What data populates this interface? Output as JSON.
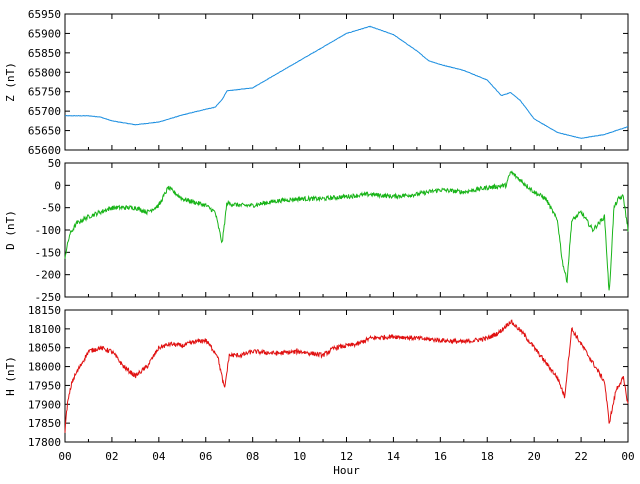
{
  "chart_data": [
    {
      "type": "line",
      "ylabel": "Z (nT)",
      "ylim": [
        65600,
        65950
      ],
      "yticks": [
        65600,
        65650,
        65700,
        65750,
        65800,
        65850,
        65900,
        65950
      ],
      "xlim": [
        0,
        24
      ],
      "color": "#1b8ee0",
      "noise": 0.6,
      "x": [
        0,
        1,
        1.5,
        2,
        3,
        4,
        5,
        6,
        6.4,
        6.7,
        6.9,
        8,
        9,
        10,
        11,
        12,
        13,
        14,
        15,
        15.5,
        16,
        17,
        18,
        18.6,
        19.0,
        19.4,
        20,
        21,
        22,
        23,
        24
      ],
      "values": [
        65688,
        65688,
        65685,
        65675,
        65665,
        65672,
        65690,
        65705,
        65710,
        65730,
        65752,
        65760,
        65795,
        65830,
        65865,
        65900,
        65918,
        65897,
        65855,
        65830,
        65820,
        65805,
        65780,
        65740,
        65748,
        65728,
        65680,
        65645,
        65630,
        65640,
        65660
      ]
    },
    {
      "type": "line",
      "ylabel": "D (nT)",
      "ylim": [
        -250,
        50
      ],
      "yticks": [
        -250,
        -200,
        -150,
        -100,
        -50,
        0,
        50
      ],
      "xlim": [
        0,
        24
      ],
      "color": "#19b419",
      "noise": 5,
      "x": [
        0,
        0.2,
        0.5,
        1,
        2,
        3,
        3.5,
        4,
        4.4,
        5,
        6,
        6.4,
        6.7,
        6.9,
        7.5,
        8,
        9,
        10,
        11,
        12,
        13,
        14,
        15,
        16,
        17,
        18,
        18.8,
        19,
        20,
        20.5,
        21,
        21.2,
        21.4,
        21.6,
        22,
        22.5,
        23,
        23.2,
        23.4,
        23.6,
        23.8,
        24
      ],
      "values": [
        -160,
        -110,
        -85,
        -70,
        -50,
        -50,
        -60,
        -45,
        -5,
        -30,
        -45,
        -60,
        -130,
        -40,
        -45,
        -45,
        -35,
        -30,
        -30,
        -25,
        -20,
        -25,
        -20,
        -10,
        -15,
        -5,
        0,
        30,
        -15,
        -30,
        -80,
        -170,
        -215,
        -80,
        -60,
        -100,
        -70,
        -245,
        -50,
        -30,
        -25,
        -100
      ]
    },
    {
      "type": "line",
      "ylabel": "H (nT)",
      "xlabel": "Hour",
      "ylim": [
        17800,
        18150
      ],
      "yticks": [
        17800,
        17850,
        17900,
        17950,
        18000,
        18050,
        18100,
        18150
      ],
      "xlim": [
        0,
        24
      ],
      "xticks": [
        "00",
        "02",
        "04",
        "06",
        "08",
        "10",
        "12",
        "14",
        "16",
        "18",
        "20",
        "22",
        "00"
      ],
      "color": "#e01010",
      "noise": 6,
      "x": [
        0,
        0.1,
        0.3,
        0.5,
        1,
        1.5,
        2,
        2.5,
        3,
        3.5,
        4,
        4.5,
        5,
        5.5,
        6,
        6.5,
        6.8,
        7,
        7.5,
        8,
        9,
        10,
        11,
        11.5,
        12,
        12.5,
        13,
        14,
        15,
        16,
        17,
        18,
        18.5,
        19,
        19.5,
        20,
        20.5,
        21,
        21.3,
        21.6,
        22,
        22.5,
        23,
        23.2,
        23.5,
        23.8,
        24
      ],
      "values": [
        17830,
        17900,
        17960,
        17985,
        18040,
        18050,
        18040,
        18000,
        17975,
        18000,
        18050,
        18060,
        18055,
        18065,
        18070,
        18030,
        17940,
        18030,
        18030,
        18040,
        18035,
        18040,
        18030,
        18050,
        18055,
        18060,
        18075,
        18080,
        18075,
        18070,
        18065,
        18075,
        18090,
        18120,
        18090,
        18050,
        18010,
        17970,
        17920,
        18100,
        18060,
        18010,
        17960,
        17850,
        17940,
        17970,
        17900
      ]
    }
  ]
}
